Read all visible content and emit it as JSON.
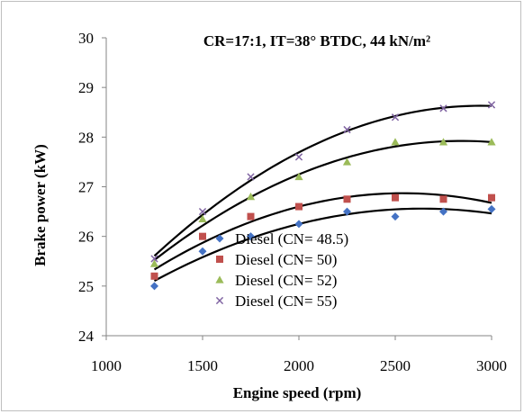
{
  "chart_data": {
    "type": "scatter",
    "title": "CR=17:1, IT=38° BTDC, 44 kN/m²",
    "xlabel": "Engine speed (rpm)",
    "ylabel": "Brake power (kW)",
    "xlim": [
      1000,
      3000
    ],
    "ylim": [
      24,
      30
    ],
    "xticks": [
      1000,
      1500,
      2000,
      2500,
      3000
    ],
    "yticks": [
      24,
      25,
      26,
      27,
      28,
      29,
      30
    ],
    "x": [
      1250,
      1500,
      1750,
      2000,
      2250,
      2500,
      2750,
      3000
    ],
    "grid": false,
    "legend_position": "bottom-right",
    "series": [
      {
        "name": "Diesel (CN= 48.5)",
        "marker": "diamond",
        "color": "#4472c4",
        "values": [
          25.0,
          25.7,
          26.0,
          26.25,
          26.5,
          26.4,
          26.5,
          26.55
        ]
      },
      {
        "name": "Diesel (CN= 50)",
        "marker": "square",
        "color": "#c0504d",
        "values": [
          25.2,
          26.0,
          26.4,
          26.6,
          26.75,
          26.78,
          26.75,
          26.78
        ]
      },
      {
        "name": "Diesel (CN= 52)",
        "marker": "triangle",
        "color": "#9bbb59",
        "values": [
          25.45,
          26.35,
          26.8,
          27.2,
          27.5,
          27.9,
          27.9,
          27.9
        ]
      },
      {
        "name": "Diesel (CN= 55)",
        "marker": "cross",
        "color": "#8064a2",
        "values": [
          25.55,
          26.5,
          27.2,
          27.6,
          28.15,
          28.4,
          28.58,
          28.65
        ]
      }
    ]
  }
}
